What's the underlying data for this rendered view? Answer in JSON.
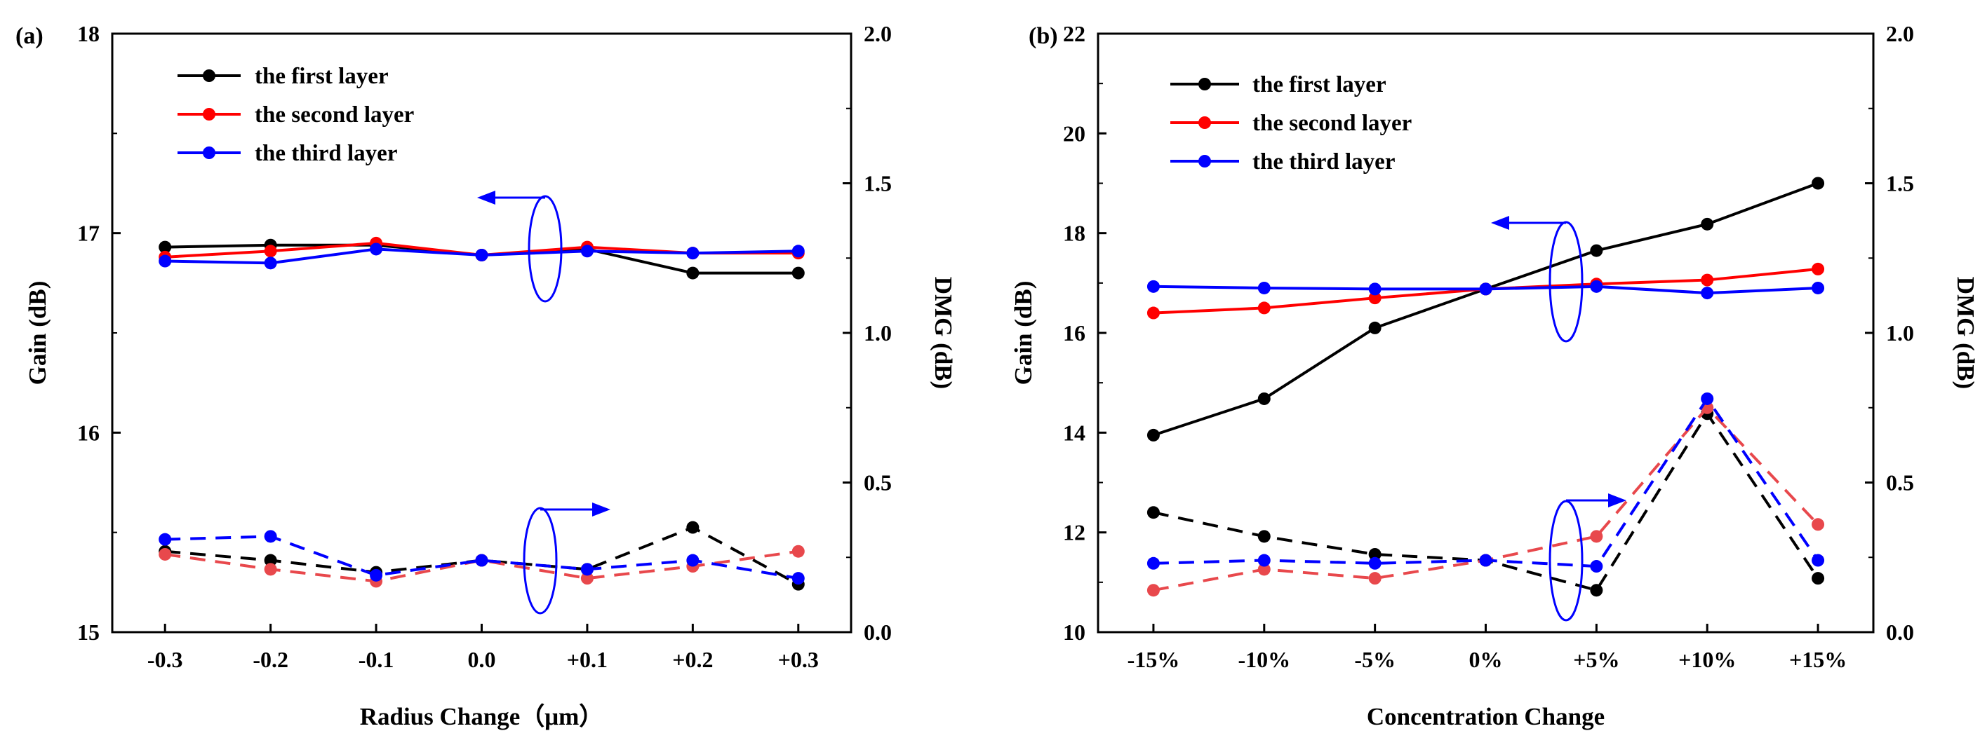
{
  "chart_data": [
    {
      "panel": "(a)",
      "type": "line",
      "xlabel": "Radius Change（μm）",
      "ylabel": "Gain (dB)",
      "y2label": "DMG (dB)",
      "categories": [
        "-0.3",
        "-0.2",
        "-0.1",
        "0.0",
        "+0.1",
        "+0.2",
        "+0.3"
      ],
      "ylim": [
        15,
        18
      ],
      "yticks": [
        "15",
        "16",
        "17",
        "18"
      ],
      "y2lim": [
        0.0,
        2.0
      ],
      "y2ticks": [
        "0.0",
        "0.5",
        "1.0",
        "1.5",
        "2.0"
      ],
      "legend": [
        "the first layer",
        "the second layer",
        "the third layer"
      ],
      "colors": {
        "first": "#000000",
        "second": "#ff0000",
        "third": "#0000ff",
        "second_dmg": "#e8484c"
      },
      "gain_series": [
        {
          "name": "the first layer",
          "values": [
            16.93,
            16.94,
            16.94,
            16.89,
            16.92,
            16.8,
            16.8
          ]
        },
        {
          "name": "the second layer",
          "values": [
            16.88,
            16.91,
            16.95,
            16.89,
            16.93,
            16.9,
            16.9
          ]
        },
        {
          "name": "the third layer",
          "values": [
            16.86,
            16.85,
            16.92,
            16.89,
            16.91,
            16.9,
            16.91
          ]
        }
      ],
      "dmg_series": [
        {
          "name": "the first layer",
          "values": [
            0.27,
            0.24,
            0.2,
            0.24,
            0.21,
            0.35,
            0.16
          ]
        },
        {
          "name": "the second layer",
          "values": [
            0.26,
            0.21,
            0.17,
            0.24,
            0.18,
            0.22,
            0.27
          ]
        },
        {
          "name": "the third layer",
          "values": [
            0.31,
            0.32,
            0.19,
            0.24,
            0.21,
            0.24,
            0.18
          ]
        }
      ]
    },
    {
      "panel": "(b)",
      "type": "line",
      "xlabel": "Concentration Change",
      "ylabel": "Gain (dB)",
      "y2label": "DMG (dB)",
      "categories": [
        "-15%",
        "-10%",
        "-5%",
        "0%",
        "+5%",
        "+10%",
        "+15%"
      ],
      "ylim": [
        10,
        22
      ],
      "yticks": [
        "10",
        "12",
        "14",
        "16",
        "18",
        "20",
        "22"
      ],
      "y2lim": [
        0.0,
        2.0
      ],
      "y2ticks": [
        "0.0",
        "0.5",
        "1.0",
        "1.5",
        "2.0"
      ],
      "legend": [
        "the first layer",
        "the second layer",
        "the third layer"
      ],
      "colors": {
        "first": "#000000",
        "second": "#ff0000",
        "third": "#0000ff",
        "second_dmg": "#e8484c"
      },
      "gain_series": [
        {
          "name": "the first layer",
          "values": [
            13.95,
            14.68,
            16.1,
            16.88,
            17.65,
            18.18,
            19.0
          ]
        },
        {
          "name": "the second layer",
          "values": [
            16.4,
            16.5,
            16.7,
            16.88,
            16.98,
            17.06,
            17.28
          ]
        },
        {
          "name": "the third layer",
          "values": [
            16.93,
            16.9,
            16.88,
            16.88,
            16.93,
            16.8,
            16.9
          ]
        }
      ],
      "dmg_series": [
        {
          "name": "the first layer",
          "values": [
            0.4,
            0.32,
            0.26,
            0.24,
            0.14,
            0.73,
            0.18
          ]
        },
        {
          "name": "the second layer",
          "values": [
            0.14,
            0.21,
            0.18,
            0.24,
            0.32,
            0.75,
            0.36
          ]
        },
        {
          "name": "the third layer",
          "values": [
            0.23,
            0.24,
            0.23,
            0.24,
            0.22,
            0.78,
            0.24
          ]
        }
      ]
    }
  ]
}
